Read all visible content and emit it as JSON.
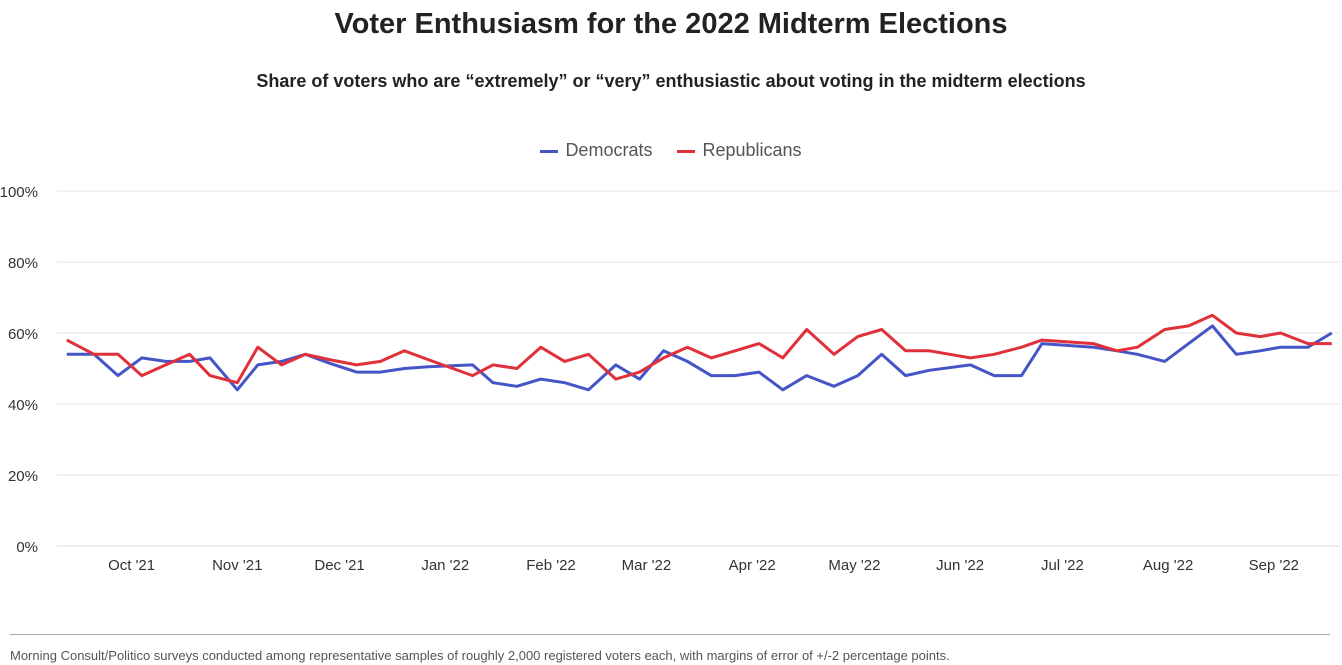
{
  "chart_data": {
    "type": "line",
    "title": "Voter Enthusiasm for the 2022 Midterm Elections",
    "subtitle": "Share of voters who are “extremely” or “very” enthusiastic about voting in the midterm elections",
    "xlabel": "",
    "ylabel": "",
    "x_units": "days since Oct 1, 2021 (approx.)",
    "x": [
      -19,
      -11,
      -4,
      3,
      10,
      17,
      23,
      31,
      37,
      44,
      51,
      58,
      66,
      73,
      80,
      87,
      100,
      106,
      113,
      120,
      127,
      134,
      142,
      149,
      156,
      163,
      170,
      177,
      184,
      191,
      198,
      206,
      213,
      220,
      227,
      234,
      246,
      253,
      261,
      267,
      282,
      289,
      295,
      303,
      310,
      317,
      324,
      331,
      337,
      345,
      352
    ],
    "series": [
      {
        "name": "Democrats",
        "color": "#4555c8",
        "values": [
          54,
          54,
          48,
          53,
          52,
          52,
          53,
          44,
          51,
          52,
          54,
          51.5,
          49,
          49,
          50,
          50.5,
          51,
          46,
          45,
          47,
          46,
          44,
          51,
          47,
          55,
          52,
          48,
          48,
          49,
          44,
          48,
          45,
          48,
          54,
          48,
          49.5,
          51,
          48,
          48,
          57,
          56,
          55,
          54,
          52,
          57,
          62,
          54,
          55,
          56,
          56,
          60
        ]
      },
      {
        "name": "Republicans",
        "color": "#e0303a",
        "values": [
          58,
          54,
          54,
          48,
          51,
          54,
          48,
          46,
          56,
          51,
          54,
          52.5,
          51,
          52,
          55,
          52.5,
          48,
          51,
          50,
          56,
          52,
          54,
          47,
          49,
          53,
          56,
          53,
          55,
          57,
          53,
          61,
          54,
          59,
          61,
          55,
          55,
          53,
          54,
          56,
          58,
          57,
          55,
          56,
          61,
          62,
          65,
          60,
          59,
          60,
          57,
          57
        ]
      }
    ],
    "xticks": [
      {
        "label": "Oct '21",
        "x": 0
      },
      {
        "label": "Nov '21",
        "x": 31
      },
      {
        "label": "Dec '21",
        "x": 61
      },
      {
        "label": "Jan '22",
        "x": 92
      },
      {
        "label": "Feb '22",
        "x": 123
      },
      {
        "label": "Mar '22",
        "x": 151
      },
      {
        "label": "Apr '22",
        "x": 182
      },
      {
        "label": "May '22",
        "x": 212
      },
      {
        "label": "Jun '22",
        "x": 243
      },
      {
        "label": "Jul '22",
        "x": 273
      },
      {
        "label": "Aug '22",
        "x": 304
      },
      {
        "label": "Sep '22",
        "x": 335
      }
    ],
    "yticks": [
      {
        "label": "0%",
        "y": 0
      },
      {
        "label": "20%",
        "y": 20
      },
      {
        "label": "40%",
        "y": 40
      },
      {
        "label": "60%",
        "y": 60
      },
      {
        "label": "80%",
        "y": 80
      },
      {
        "label": "100%",
        "y": 100
      }
    ],
    "xlim": [
      -21,
      355
    ],
    "ylim": [
      0,
      100
    ],
    "grid": true,
    "legend_position": "top-center",
    "note": "Morning Consult/Politico surveys conducted among representative samples of roughly 2,000 registered voters each, with margins of error of +/-2 percentage points."
  }
}
